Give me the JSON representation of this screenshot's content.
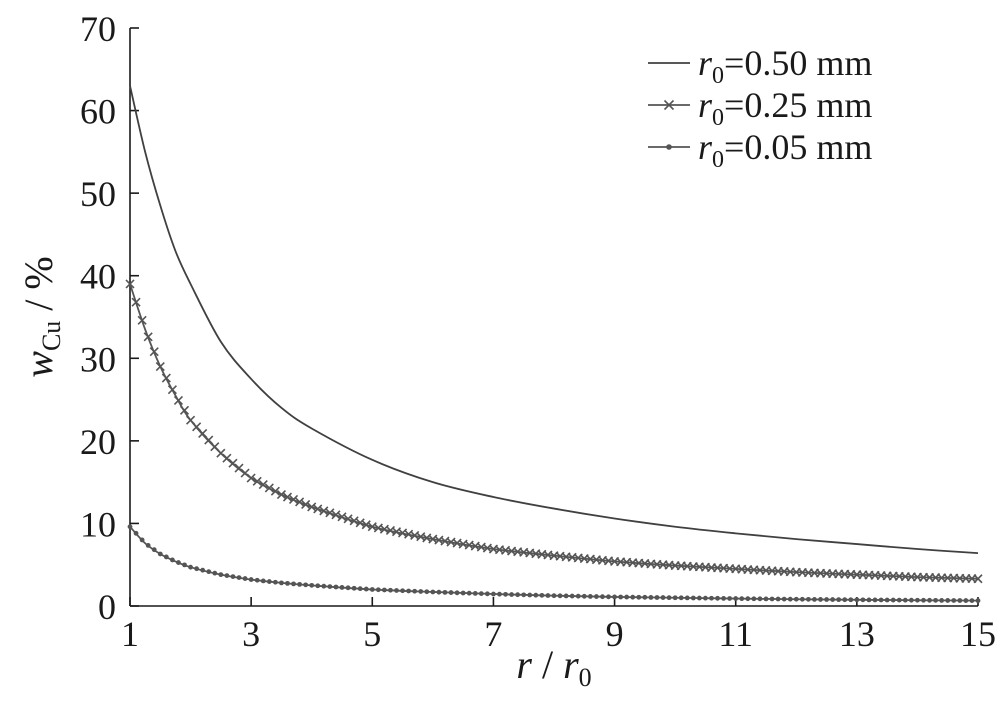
{
  "chart_data": {
    "type": "line",
    "xlabel_main": "r",
    "xlabel_sep": " / ",
    "xlabel_var": "r",
    "xlabel_sub": "0",
    "ylabel_main": "w",
    "ylabel_sub": "Cu",
    "ylabel_unit": " / %",
    "xlim": [
      1,
      15
    ],
    "ylim": [
      0,
      70
    ],
    "x_ticks": [
      1,
      3,
      5,
      7,
      9,
      11,
      13,
      15
    ],
    "y_ticks": [
      0,
      10,
      20,
      30,
      40,
      50,
      60,
      70
    ],
    "grid": false,
    "legend_position": "top-right",
    "series": [
      {
        "legend_var": "r",
        "legend_sub": "0",
        "legend_rest": "=0.50 mm",
        "marker": "none",
        "color": "#404040",
        "x": [
          1,
          1.25,
          1.5,
          1.75,
          2,
          2.5,
          3,
          3.5,
          4,
          5,
          6,
          7,
          8,
          9,
          10,
          11,
          12,
          13,
          14,
          15
        ],
        "y": [
          63,
          55,
          48.5,
          43,
          39,
          32,
          27.5,
          24,
          21.5,
          17.7,
          15.0,
          13.2,
          11.8,
          10.6,
          9.6,
          8.8,
          8.1,
          7.5,
          6.9,
          6.4
        ]
      },
      {
        "legend_var": "r",
        "legend_sub": "0",
        "legend_rest": "=0.25 mm",
        "marker": "x",
        "color": "#555555",
        "x": [
          1,
          1.25,
          1.5,
          1.75,
          2,
          2.5,
          3,
          3.5,
          4,
          5,
          6,
          7,
          8,
          9,
          10,
          11,
          12,
          13,
          14,
          15
        ],
        "y": [
          39,
          33.5,
          29,
          25.5,
          22.5,
          18.5,
          15.5,
          13.5,
          12,
          9.6,
          8.1,
          6.9,
          6.1,
          5.4,
          4.9,
          4.5,
          4.1,
          3.8,
          3.5,
          3.3
        ]
      },
      {
        "legend_var": "r",
        "legend_sub": "0",
        "legend_rest": "=0.05 mm",
        "marker": "dot",
        "color": "#555555",
        "x": [
          1,
          1.25,
          1.5,
          1.75,
          2,
          2.5,
          3,
          3.5,
          4,
          5,
          6,
          7,
          8,
          9,
          10,
          11,
          12,
          13,
          14,
          15
        ],
        "y": [
          9.6,
          7.6,
          6.3,
          5.4,
          4.7,
          3.8,
          3.2,
          2.8,
          2.5,
          2.0,
          1.7,
          1.45,
          1.25,
          1.1,
          1.0,
          0.9,
          0.82,
          0.75,
          0.7,
          0.65
        ]
      }
    ]
  }
}
